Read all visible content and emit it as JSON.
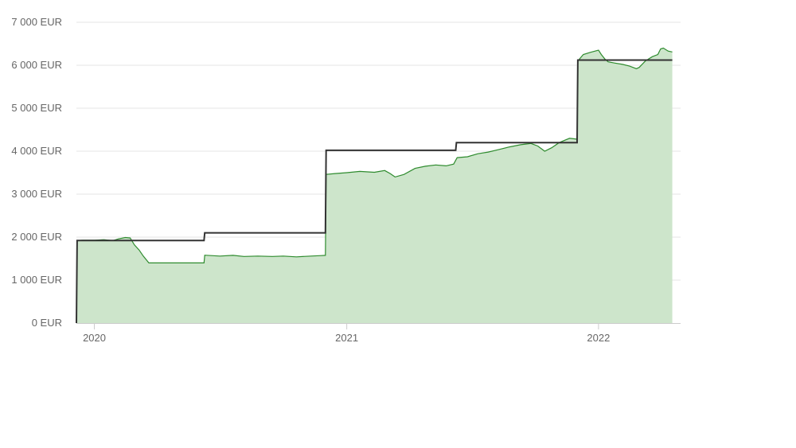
{
  "chart_data": {
    "type": "line",
    "title": "",
    "xlabel": "",
    "ylabel": "",
    "x_ticks": [
      {
        "label": "2020",
        "date": "2020-01-01"
      },
      {
        "label": "2021",
        "date": "2021-01-01"
      },
      {
        "label": "2022",
        "date": "2022-01-01"
      }
    ],
    "y_ticks": [
      {
        "label": "0 EUR",
        "value": 0
      },
      {
        "label": "1 000 EUR",
        "value": 1000
      },
      {
        "label": "2 000 EUR",
        "value": 2000
      },
      {
        "label": "3 000 EUR",
        "value": 3000
      },
      {
        "label": "4 000 EUR",
        "value": 4000
      },
      {
        "label": "5 000 EUR",
        "value": 5000
      },
      {
        "label": "6 000 EUR",
        "value": 6000
      },
      {
        "label": "7 000 EUR",
        "value": 7000
      }
    ],
    "xlim": [
      "2019-12-06",
      "2022-04-30"
    ],
    "ylim": [
      0,
      7000
    ],
    "grid": true,
    "legend": "none",
    "colors": {
      "portfolio_line": "#2e8b2e",
      "portfolio_fill": "#cde5cb",
      "invested_line": "#333333",
      "grid": "#e6e6e6"
    },
    "series": [
      {
        "style": "area",
        "points": [
          [
            "2019-12-06",
            0
          ],
          [
            "2019-12-07",
            1920
          ],
          [
            "2019-12-15",
            1930
          ],
          [
            "2020-01-01",
            1930
          ],
          [
            "2020-01-15",
            1940
          ],
          [
            "2020-01-28",
            1920
          ],
          [
            "2020-02-05",
            1960
          ],
          [
            "2020-02-15",
            1990
          ],
          [
            "2020-02-22",
            1980
          ],
          [
            "2020-02-28",
            1820
          ],
          [
            "2020-03-06",
            1700
          ],
          [
            "2020-03-12",
            1560
          ],
          [
            "2020-03-20",
            1400
          ],
          [
            "2020-04-15",
            1400
          ],
          [
            "2020-05-15",
            1400
          ],
          [
            "2020-06-08",
            1400
          ],
          [
            "2020-06-09",
            1580
          ],
          [
            "2020-07-01",
            1560
          ],
          [
            "2020-07-20",
            1575
          ],
          [
            "2020-08-05",
            1550
          ],
          [
            "2020-08-25",
            1560
          ],
          [
            "2020-09-15",
            1550
          ],
          [
            "2020-10-01",
            1560
          ],
          [
            "2020-10-20",
            1540
          ],
          [
            "2020-11-10",
            1560
          ],
          [
            "2020-11-25",
            1570
          ],
          [
            "2020-12-01",
            1575
          ],
          [
            "2020-12-02",
            3460
          ],
          [
            "2020-12-15",
            3480
          ],
          [
            "2021-01-01",
            3500
          ],
          [
            "2021-01-20",
            3530
          ],
          [
            "2021-02-10",
            3510
          ],
          [
            "2021-02-25",
            3550
          ],
          [
            "2021-03-05",
            3480
          ],
          [
            "2021-03-12",
            3400
          ],
          [
            "2021-03-25",
            3460
          ],
          [
            "2021-04-10",
            3600
          ],
          [
            "2021-04-25",
            3650
          ],
          [
            "2021-05-10",
            3680
          ],
          [
            "2021-05-25",
            3660
          ],
          [
            "2021-06-05",
            3700
          ],
          [
            "2021-06-10",
            3850
          ],
          [
            "2021-06-25",
            3870
          ],
          [
            "2021-07-10",
            3940
          ],
          [
            "2021-07-25",
            3980
          ],
          [
            "2021-08-10",
            4040
          ],
          [
            "2021-08-25",
            4100
          ],
          [
            "2021-09-10",
            4150
          ],
          [
            "2021-09-25",
            4180
          ],
          [
            "2021-10-05",
            4120
          ],
          [
            "2021-10-15",
            4000
          ],
          [
            "2021-10-25",
            4080
          ],
          [
            "2021-11-05",
            4200
          ],
          [
            "2021-11-20",
            4300
          ],
          [
            "2021-12-01",
            4280
          ],
          [
            "2021-12-02",
            6100
          ],
          [
            "2021-12-10",
            6250
          ],
          [
            "2021-12-20",
            6300
          ],
          [
            "2022-01-01",
            6350
          ],
          [
            "2022-01-05",
            6250
          ],
          [
            "2022-01-10",
            6150
          ],
          [
            "2022-01-15",
            6080
          ],
          [
            "2022-01-25",
            6050
          ],
          [
            "2022-02-05",
            6020
          ],
          [
            "2022-02-15",
            5980
          ],
          [
            "2022-02-25",
            5920
          ],
          [
            "2022-03-01",
            5950
          ],
          [
            "2022-03-10",
            6100
          ],
          [
            "2022-03-20",
            6200
          ],
          [
            "2022-03-28",
            6250
          ],
          [
            "2022-04-01",
            6380
          ],
          [
            "2022-04-05",
            6400
          ],
          [
            "2022-04-12",
            6330
          ],
          [
            "2022-04-18",
            6310
          ]
        ]
      },
      {
        "style": "step",
        "points": [
          [
            "2019-12-06",
            0
          ],
          [
            "2019-12-07",
            1920
          ],
          [
            "2020-06-08",
            1920
          ],
          [
            "2020-06-09",
            2100
          ],
          [
            "2020-12-01",
            2100
          ],
          [
            "2020-12-02",
            4020
          ],
          [
            "2021-06-08",
            4020
          ],
          [
            "2021-06-09",
            4200
          ],
          [
            "2021-12-01",
            4200
          ],
          [
            "2021-12-02",
            6120
          ],
          [
            "2022-04-18",
            6120
          ]
        ]
      }
    ]
  }
}
